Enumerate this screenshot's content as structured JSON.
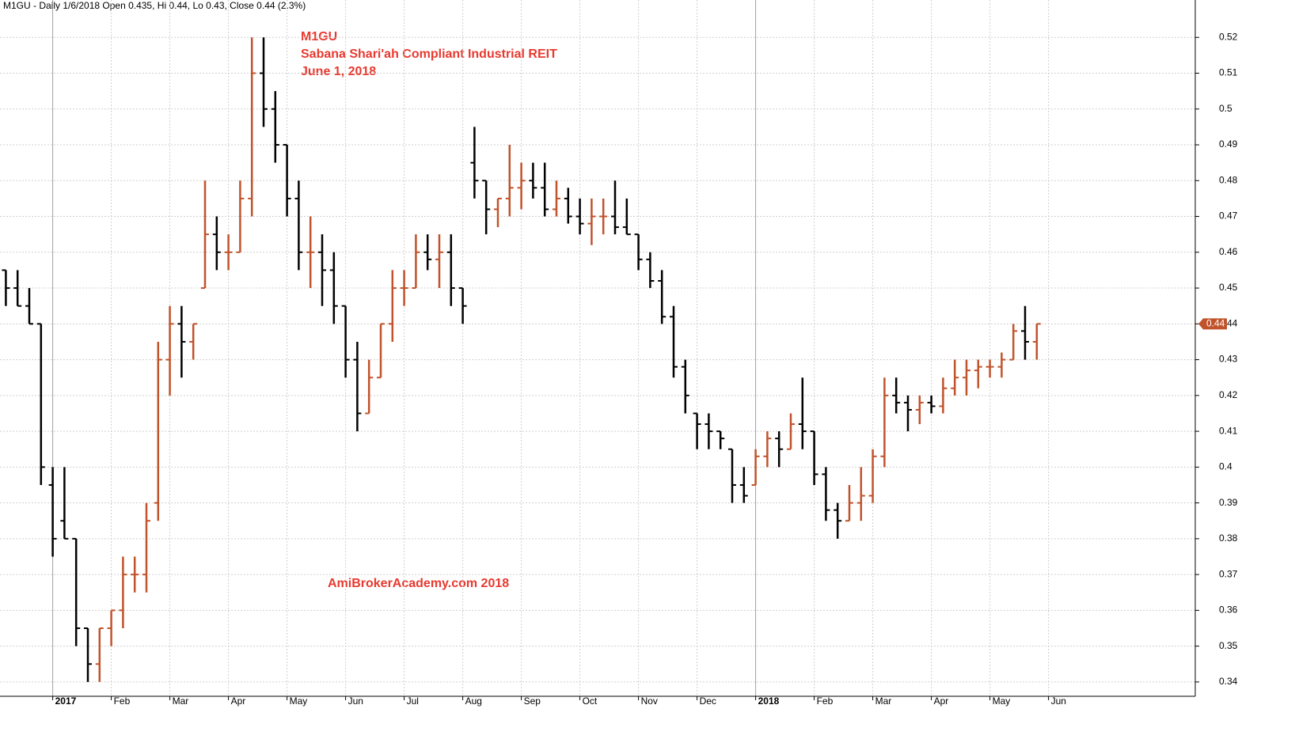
{
  "chart_data": {
    "type": "ohlc",
    "header": "M1GU - Daily 1/6/2018 Open 0.435, Hi 0.44, Lo 0.43, Close 0.44 (2.3%)",
    "title": "M1GU",
    "subtitle": "Sabana Shari'ah Compliant Industrial REIT",
    "date_label": "June 1, 2018",
    "watermark": "AmiBrokerAcademy.com  2018",
    "annotation_color": "#e8392f",
    "up_color": "#c0532b",
    "down_color": "#000000",
    "grid": true,
    "ylim": [
      0.336,
      0.53
    ],
    "yticks": [
      0.34,
      0.35,
      0.36,
      0.37,
      0.38,
      0.39,
      0.4,
      0.41,
      0.42,
      0.43,
      0.44,
      0.45,
      0.46,
      0.47,
      0.48,
      0.49,
      0.5,
      0.51,
      0.52
    ],
    "categories": [
      null,
      null,
      null,
      null,
      "2017",
      null,
      null,
      null,
      null,
      "Feb",
      null,
      null,
      null,
      null,
      "Mar",
      null,
      null,
      null,
      null,
      "Apr",
      null,
      null,
      null,
      null,
      "May",
      null,
      null,
      null,
      null,
      "Jun",
      null,
      null,
      null,
      null,
      "Jul",
      null,
      null,
      null,
      null,
      "Aug",
      null,
      null,
      null,
      null,
      "Sep",
      null,
      null,
      null,
      null,
      "Oct",
      null,
      null,
      null,
      null,
      "Nov",
      null,
      null,
      null,
      null,
      "Dec",
      null,
      null,
      null,
      null,
      "2018",
      null,
      null,
      null,
      null,
      "Feb",
      null,
      null,
      null,
      null,
      "Mar",
      null,
      null,
      null,
      null,
      "Apr",
      null,
      null,
      null,
      null,
      "May",
      null,
      null,
      null,
      null,
      "Jun"
    ],
    "open": [
      0.455,
      0.45,
      0.445,
      0.44,
      0.395,
      0.385,
      0.38,
      0.355,
      0.345,
      0.355,
      0.36,
      0.37,
      0.37,
      0.39,
      0.43,
      0.44,
      0.435,
      0.45,
      0.465,
      0.46,
      0.46,
      0.475,
      0.51,
      0.5,
      0.49,
      0.475,
      0.46,
      0.46,
      0.455,
      0.445,
      0.43,
      0.415,
      0.425,
      0.44,
      0.45,
      0.45,
      0.46,
      0.458,
      0.46,
      0.45,
      0.485,
      0.48,
      0.472,
      0.475,
      0.478,
      0.48,
      0.478,
      0.472,
      0.475,
      0.47,
      0.468,
      0.47,
      0.47,
      0.467,
      0.465,
      0.458,
      0.452,
      0.442,
      0.428,
      0.415,
      0.412,
      0.41,
      0.405,
      0.395,
      0.395,
      0.403,
      0.408,
      0.405,
      0.412,
      0.41,
      0.398,
      0.388,
      0.385,
      0.39,
      0.392,
      0.403,
      0.42,
      0.418,
      0.416,
      0.418,
      0.417,
      0.422,
      0.425,
      0.427,
      0.428,
      0.428,
      0.43,
      0.438,
      0.435,
      null
    ],
    "high": [
      0.455,
      0.455,
      0.45,
      0.44,
      0.4,
      0.4,
      0.38,
      0.355,
      0.355,
      0.36,
      0.375,
      0.375,
      0.39,
      0.435,
      0.445,
      0.445,
      0.44,
      0.48,
      0.47,
      0.465,
      0.48,
      0.52,
      0.52,
      0.505,
      0.49,
      0.48,
      0.47,
      0.465,
      0.46,
      0.445,
      0.435,
      0.43,
      0.44,
      0.455,
      0.455,
      0.465,
      0.465,
      0.465,
      0.465,
      0.45,
      0.495,
      0.48,
      0.475,
      0.49,
      0.485,
      0.485,
      0.485,
      0.48,
      0.478,
      0.475,
      0.475,
      0.475,
      0.48,
      0.475,
      0.465,
      0.46,
      0.455,
      0.445,
      0.43,
      0.415,
      0.415,
      0.41,
      0.405,
      0.4,
      0.405,
      0.41,
      0.41,
      0.415,
      0.425,
      0.41,
      0.4,
      0.39,
      0.395,
      0.4,
      0.405,
      0.425,
      0.425,
      0.42,
      0.42,
      0.42,
      0.425,
      0.43,
      0.43,
      0.43,
      0.43,
      0.432,
      0.44,
      0.445,
      0.44,
      null
    ],
    "low": [
      0.445,
      0.445,
      0.44,
      0.395,
      0.375,
      0.38,
      0.35,
      0.34,
      0.34,
      0.35,
      0.355,
      0.365,
      0.365,
      0.385,
      0.42,
      0.425,
      0.43,
      0.45,
      0.455,
      0.455,
      0.46,
      0.47,
      0.495,
      0.485,
      0.47,
      0.455,
      0.45,
      0.445,
      0.44,
      0.425,
      0.41,
      0.415,
      0.425,
      0.435,
      0.445,
      0.45,
      0.455,
      0.45,
      0.445,
      0.44,
      0.475,
      0.465,
      0.467,
      0.47,
      0.472,
      0.475,
      0.47,
      0.47,
      0.468,
      0.465,
      0.462,
      0.465,
      0.465,
      0.465,
      0.455,
      0.45,
      0.44,
      0.425,
      0.415,
      0.405,
      0.405,
      0.405,
      0.39,
      0.39,
      0.395,
      0.4,
      0.4,
      0.405,
      0.405,
      0.395,
      0.385,
      0.38,
      0.385,
      0.385,
      0.39,
      0.4,
      0.415,
      0.41,
      0.412,
      0.415,
      0.415,
      0.42,
      0.42,
      0.422,
      0.425,
      0.425,
      0.43,
      0.43,
      0.43,
      null
    ],
    "close": [
      0.45,
      0.445,
      0.44,
      0.4,
      0.38,
      0.38,
      0.355,
      0.345,
      0.355,
      0.36,
      0.37,
      0.37,
      0.385,
      0.43,
      0.44,
      0.435,
      0.44,
      0.465,
      0.46,
      0.46,
      0.475,
      0.51,
      0.5,
      0.49,
      0.475,
      0.46,
      0.46,
      0.455,
      0.445,
      0.43,
      0.415,
      0.425,
      0.44,
      0.45,
      0.45,
      0.46,
      0.458,
      0.46,
      0.45,
      0.445,
      0.48,
      0.472,
      0.475,
      0.478,
      0.48,
      0.478,
      0.472,
      0.475,
      0.47,
      0.468,
      0.47,
      0.47,
      0.467,
      0.465,
      0.458,
      0.452,
      0.442,
      0.428,
      0.42,
      0.412,
      0.41,
      0.408,
      0.395,
      0.392,
      0.403,
      0.408,
      0.405,
      0.412,
      0.41,
      0.398,
      0.388,
      0.385,
      0.39,
      0.392,
      0.403,
      0.42,
      0.418,
      0.416,
      0.418,
      0.417,
      0.422,
      0.425,
      0.427,
      0.428,
      0.428,
      0.43,
      0.438,
      0.435,
      0.44,
      null
    ]
  }
}
